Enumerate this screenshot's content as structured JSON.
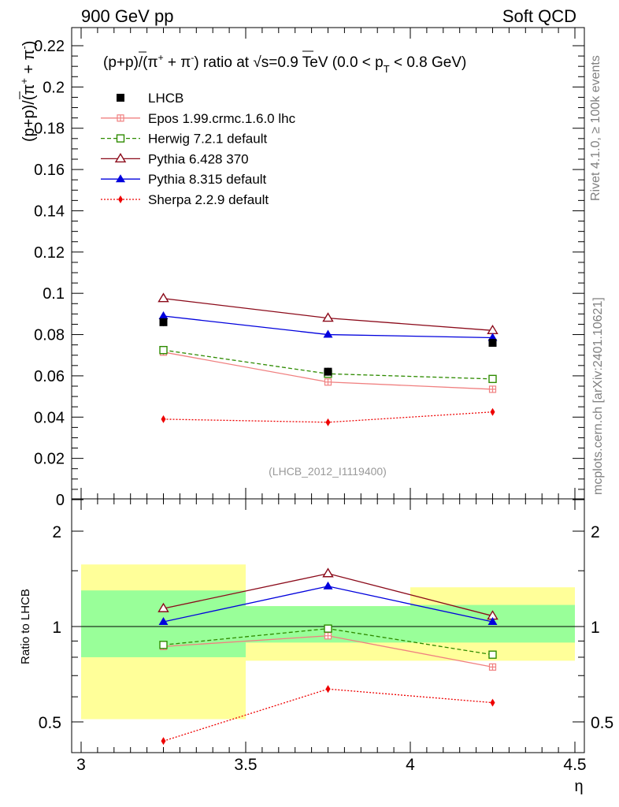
{
  "header": {
    "left": "900 GeV pp",
    "right": "Soft QCD"
  },
  "side": {
    "rivet": "Rivet 4.1.0, ≥ 100k events",
    "mcplots": "mcplots.cern.ch [arXiv:2401.10621]"
  },
  "watermark": "(LHCB_2012_I1119400)",
  "chart_data": [
    {
      "type": "line",
      "panel": "main",
      "title": "(p+p̄)/(π⁺ + π⁻) ratio at √s=0.9 TeV (0.0 < pT < 0.8 GeV)",
      "ylabel": "(p+p̄)/(π⁺ + π⁻)",
      "xlabel": "η",
      "xlim": [
        3,
        4.5
      ],
      "ylim": [
        0,
        0.23
      ],
      "xticks": [
        3,
        3.5,
        4,
        4.5
      ],
      "xtick_labels": [
        "3",
        "3.5",
        "4",
        "4.5"
      ],
      "yticks": [
        0,
        0.02,
        0.04,
        0.06,
        0.08,
        0.1,
        0.12,
        0.14,
        0.16,
        0.18,
        0.2,
        0.22
      ],
      "ytick_labels": [
        "0",
        "0.02",
        "0.04",
        "0.06",
        "0.08",
        "0.1",
        "0.12",
        "0.14",
        "0.16",
        "0.18",
        "0.2",
        "0.22"
      ],
      "x": [
        3.25,
        3.75,
        4.25
      ],
      "data": {
        "name": "LHCB",
        "values": [
          0.086,
          0.062,
          0.076
        ],
        "color": "#000000"
      },
      "series": [
        {
          "name": "Epos 1.99.crmc.1.6.0 lhc",
          "values": [
            0.0715,
            0.057,
            0.0535
          ],
          "color": "#f08080",
          "style": "solid",
          "marker": "cross-square"
        },
        {
          "name": "Herwig 7.2.1 default",
          "values": [
            0.0725,
            0.061,
            0.0585
          ],
          "color": "#2e8b00",
          "style": "dashed",
          "marker": "open-square"
        },
        {
          "name": "Pythia 6.428 370",
          "values": [
            0.0975,
            0.088,
            0.082
          ],
          "color": "#8b0a1a",
          "style": "solid",
          "marker": "open-triangle"
        },
        {
          "name": "Pythia 8.315 default",
          "values": [
            0.089,
            0.08,
            0.0785
          ],
          "color": "#0000dd",
          "style": "solid",
          "marker": "filled-triangle"
        },
        {
          "name": "Sherpa 2.2.9 default",
          "values": [
            0.039,
            0.0375,
            0.0425
          ],
          "color": "#ee0000",
          "style": "dotted",
          "marker": "diamond"
        }
      ]
    },
    {
      "type": "line",
      "panel": "ratio",
      "ylabel": "Ratio to LHCB",
      "xlabel": "η",
      "xlim": [
        3,
        4.5
      ],
      "ylim": [
        0.4,
        2.4
      ],
      "yscale": "log",
      "yticks": [
        0.5,
        1,
        2
      ],
      "ytick_labels": [
        "0.5",
        "1",
        "2"
      ],
      "x": [
        3.25,
        3.75,
        4.25
      ],
      "uncertainty_bands": [
        {
          "xlo": 3.0,
          "xhi": 3.5,
          "yellow": [
            0.51,
            1.57
          ],
          "green": [
            0.8,
            1.3
          ]
        },
        {
          "xlo": 3.5,
          "xhi": 4.0,
          "yellow": [
            0.78,
            1.16
          ],
          "green": [
            0.89,
            1.16
          ]
        },
        {
          "xlo": 4.0,
          "xhi": 4.5,
          "yellow": [
            0.78,
            1.33
          ],
          "green": [
            0.89,
            1.17
          ]
        }
      ],
      "series": [
        {
          "name": "Epos 1.99.crmc.1.6.0 lhc",
          "values": [
            0.865,
            0.935,
            0.745
          ]
        },
        {
          "name": "Herwig 7.2.1 default",
          "values": [
            0.875,
            0.985,
            0.815
          ]
        },
        {
          "name": "Pythia 6.428 370",
          "values": [
            1.14,
            1.47,
            1.08
          ]
        },
        {
          "name": "Pythia 8.315 default",
          "values": [
            1.035,
            1.34,
            1.035
          ]
        },
        {
          "name": "Sherpa 2.2.9 default",
          "values": [
            0.435,
            0.635,
            0.575
          ]
        }
      ]
    }
  ]
}
